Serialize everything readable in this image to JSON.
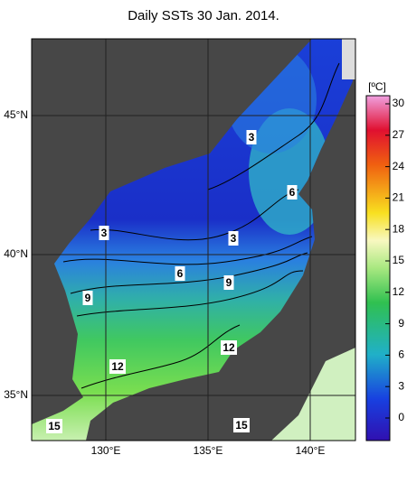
{
  "title": "Daily SSTs 30 Jan. 2014.",
  "lat_labels": [
    "45°N",
    "40°N",
    "35°N"
  ],
  "lon_labels": [
    "130°E",
    "135°E",
    "140°E"
  ],
  "contour_labels": [
    "3",
    "6",
    "3",
    "3",
    "6",
    "9",
    "9",
    "12",
    "12",
    "15",
    "15"
  ],
  "colorbar": {
    "unit": "[ºC]",
    "ticks": [
      30,
      27,
      24,
      21,
      18,
      15,
      12,
      9,
      6,
      3,
      0
    ]
  }
}
